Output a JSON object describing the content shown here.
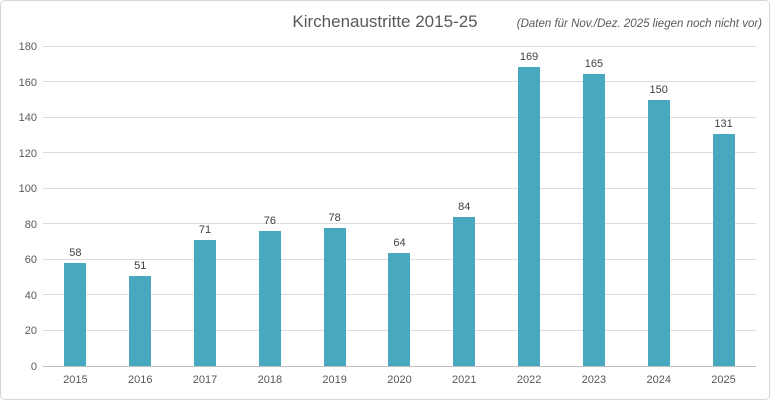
{
  "header": {
    "title": "Kirchenaustritte 2015-25",
    "subtitle": "(Daten für Nov./Dez. 2025 liegen noch nicht vor)"
  },
  "colors": {
    "bar": "#47A8C0",
    "title_text": "#595959",
    "axis_label": "#595959",
    "data_label": "#404040",
    "gridline": "#DCDCDC",
    "axis_line": "#BFBFBF",
    "border": "#D6D6D6"
  },
  "chart_data": {
    "type": "bar",
    "title": "Kirchenaustritte 2015-25",
    "annotation": "(Daten für Nov./Dez. 2025 liegen noch nicht vor)",
    "categories": [
      "2015",
      "2016",
      "2017",
      "2018",
      "2019",
      "2020",
      "2021",
      "2022",
      "2023",
      "2024",
      "2025"
    ],
    "values": [
      58,
      51,
      71,
      76,
      78,
      64,
      84,
      169,
      165,
      150,
      131
    ],
    "xlabel": "",
    "ylabel": "",
    "ylim": [
      0,
      180
    ],
    "yticks": [
      0,
      20,
      40,
      60,
      80,
      100,
      120,
      140,
      160,
      180
    ],
    "grid": true,
    "legend": false
  }
}
